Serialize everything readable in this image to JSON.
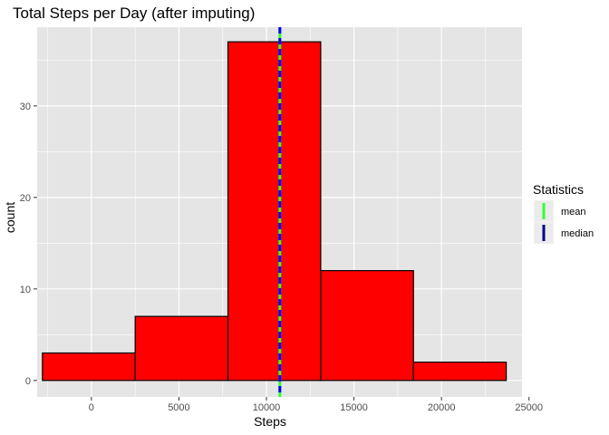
{
  "chart_data": {
    "type": "bar",
    "title": "Total Steps per Day (after imputing)",
    "xlabel": "Steps",
    "ylabel": "count",
    "xlim": [
      -3100,
      24600
    ],
    "ylim": [
      -1.8,
      38.6
    ],
    "x_ticks": [
      0,
      5000,
      10000,
      15000,
      20000,
      25000
    ],
    "x_tick_labels": [
      "0",
      "5000",
      "10000",
      "15000",
      "20000",
      "25000"
    ],
    "y_ticks": [
      0,
      10,
      20,
      30
    ],
    "y_tick_labels": [
      "0",
      "10",
      "20",
      "30"
    ],
    "bars": [
      {
        "x_start": -2800,
        "x_end": 2500,
        "count": 3
      },
      {
        "x_start": 2500,
        "x_end": 7800,
        "count": 7
      },
      {
        "x_start": 7800,
        "x_end": 13100,
        "count": 37
      },
      {
        "x_start": 13100,
        "x_end": 18400,
        "count": 12
      },
      {
        "x_start": 18400,
        "x_end": 23700,
        "count": 2
      }
    ],
    "bar_fill": "#ff0000",
    "bar_stroke": "#000000",
    "grid": true,
    "panel_background": "#e5e5e5",
    "grid_color": "#ffffff",
    "vlines": [
      {
        "name": "mean",
        "x": 10766,
        "color": "#33ff33",
        "style": "solid"
      },
      {
        "name": "median",
        "x": 10766,
        "color": "#0000ff",
        "style": "dashed"
      }
    ],
    "legend": {
      "title": "Statistics",
      "placement": "right",
      "entries": [
        {
          "label": "mean",
          "color": "#33ff33"
        },
        {
          "label": "median",
          "color": "#00008b"
        }
      ]
    }
  }
}
